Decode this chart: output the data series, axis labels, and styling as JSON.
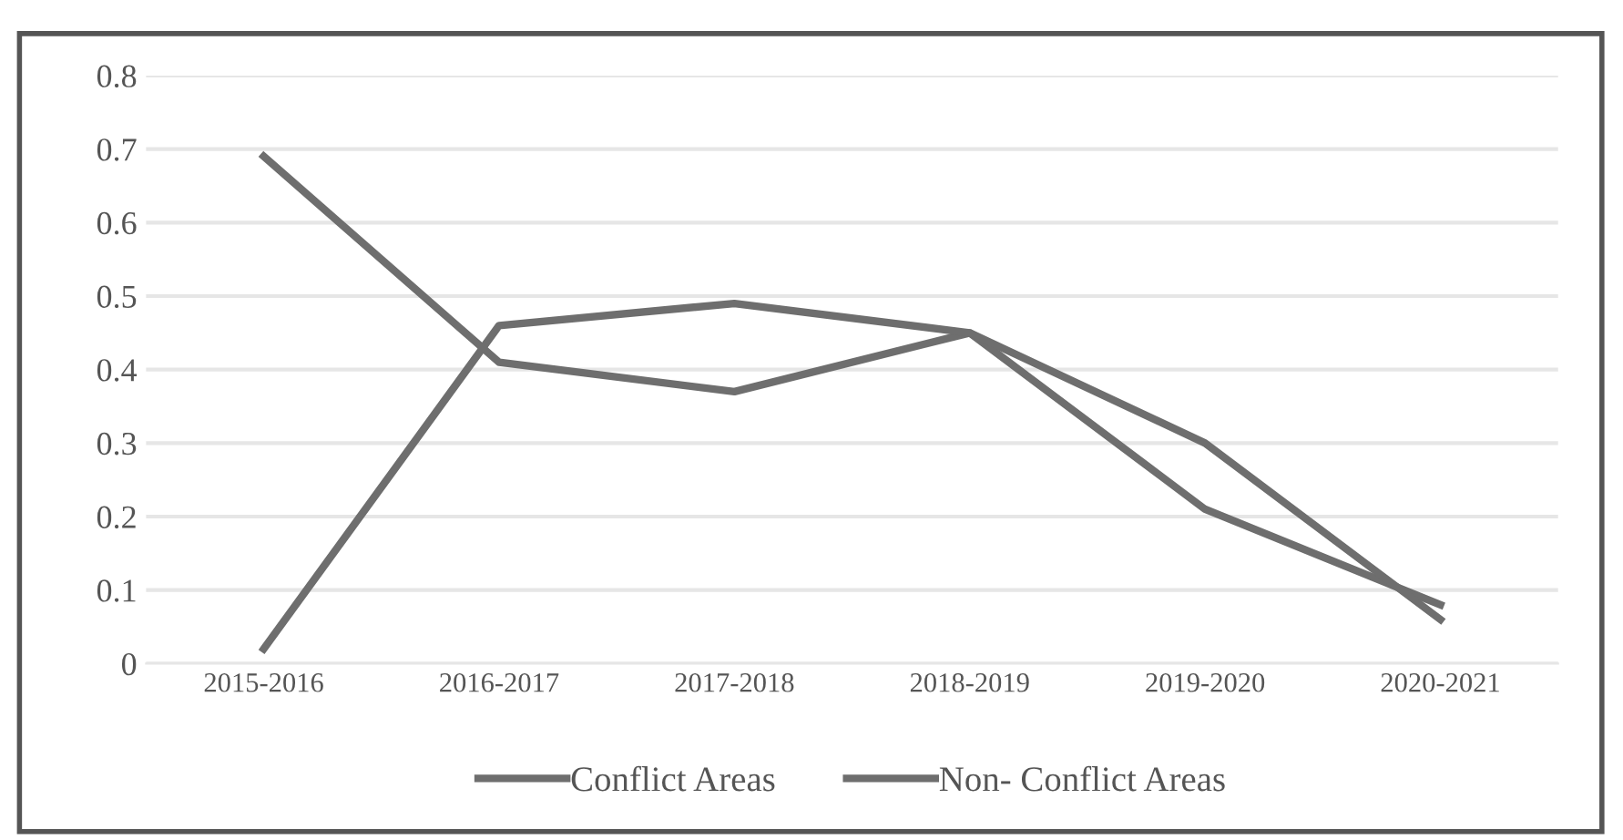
{
  "chart_data": {
    "type": "line",
    "categories": [
      "2015-2016",
      "2016-2017",
      "2017-2018",
      "2018-2019",
      "2019-2020",
      "2020-2021"
    ],
    "series": [
      {
        "name": "Conflict Areas",
        "color": "#6e6e6e",
        "values": [
          0.69,
          0.41,
          0.37,
          0.45,
          0.21,
          0.08
        ]
      },
      {
        "name": "Non- Conflict Areas",
        "color": "#6e6e6e",
        "values": [
          0.02,
          0.46,
          0.49,
          0.45,
          0.3,
          0.06
        ]
      }
    ],
    "ylim": [
      0,
      0.8
    ],
    "yticks": [
      {
        "value": 0,
        "label": "0"
      },
      0.1,
      0.2,
      0.3,
      0.4,
      0.5,
      0.6,
      0.7,
      0.8
    ],
    "grid": "y",
    "legend": "bottom",
    "marker": "none",
    "line_style": "solid"
  }
}
